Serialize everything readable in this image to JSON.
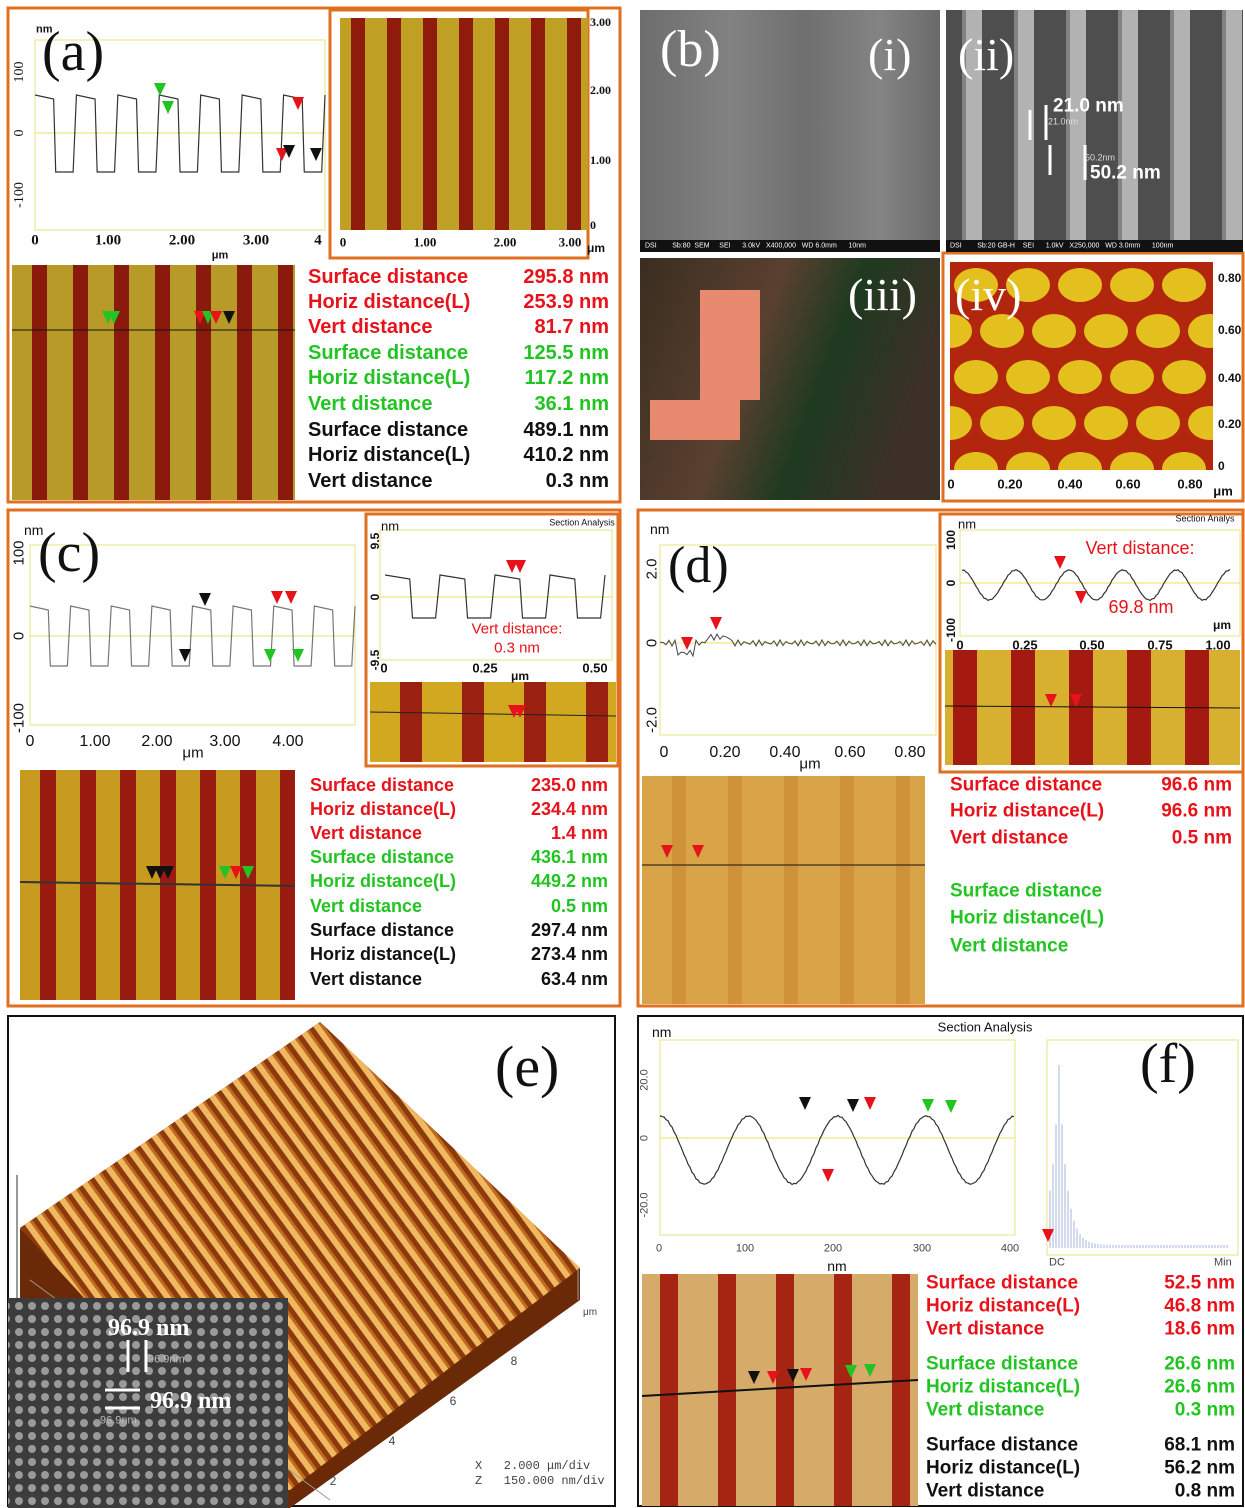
{
  "panels": {
    "a": {
      "label": "(a)",
      "profile": {
        "y_unit": "nm",
        "x_unit": "μm",
        "yticks": [
          "100",
          "0",
          "-100"
        ],
        "xticks": [
          "0",
          "1.00",
          "2.00",
          "3.00",
          "4"
        ]
      },
      "image": {
        "yticks": [
          "3.00",
          "2.00",
          "1.00",
          "0"
        ],
        "xticks": [
          "0",
          "1.00",
          "2.00",
          "3.00"
        ],
        "unit": "μm"
      },
      "measurements": [
        {
          "label": "Surface distance",
          "value": "295.8 nm",
          "color": "#e8121a"
        },
        {
          "label": "Horiz distance(L)",
          "value": "253.9 nm",
          "color": "#e8121a"
        },
        {
          "label": "Vert distance",
          "value": "81.7 nm",
          "color": "#e8121a"
        },
        {
          "label": "Surface distance",
          "value": "125.5 nm",
          "color": "#22c422"
        },
        {
          "label": "Horiz distance(L)",
          "value": "117.2 nm",
          "color": "#22c422"
        },
        {
          "label": "Vert distance",
          "value": "36.1 nm",
          "color": "#22c422"
        },
        {
          "label": "Surface distance",
          "value": "489.1 nm",
          "color": "#111111"
        },
        {
          "label": "Horiz distance(L)",
          "value": "410.2 nm",
          "color": "#111111"
        },
        {
          "label": "Vert distance",
          "value": "0.3 nm",
          "color": "#111111"
        }
      ]
    },
    "b": {
      "label": "(b)",
      "i": {
        "label": "(i)",
        "footer": "DSI        Sb:80  SEM     SEI      3.0kV   X400,000   WD 6.0mm      10nm"
      },
      "ii": {
        "label": "(ii)",
        "annotations": [
          "21.0 nm",
          "50.2 nm"
        ],
        "scale_annotations": [
          "21.0nm",
          "50.2nm"
        ],
        "footer": "DSI        Sb:20 GB-H    SEI      1.0kV   X250,000   WD 3.0mm      100nm"
      },
      "iii": {
        "label": "(iii)"
      },
      "iv": {
        "label": "(iv)",
        "yticks": [
          "0.80",
          "0.60",
          "0.40",
          "0.20",
          "0"
        ],
        "xticks": [
          "0",
          "0.20",
          "0.40",
          "0.60",
          "0.80"
        ],
        "unit": "μm"
      }
    },
    "c": {
      "label": "(c)",
      "profile": {
        "y_unit": "nm",
        "x_unit": "μm",
        "yticks": [
          "100",
          "0",
          "-100"
        ],
        "xticks": [
          "0",
          "1.00",
          "2.00",
          "3.00",
          "4.00"
        ]
      },
      "inset": {
        "title": "Section Analysis",
        "y_unit": "nm",
        "x_unit": "μm",
        "yticks": [
          "9.5",
          "0",
          "-9.5"
        ],
        "xticks": [
          "0",
          "0.25",
          "0.50"
        ],
        "annotation": [
          "Vert distance:",
          "0.3 nm"
        ]
      },
      "measurements": [
        {
          "label": "Surface distance",
          "value": "235.0 nm",
          "color": "#e8121a"
        },
        {
          "label": "Horiz distance(L)",
          "value": "234.4 nm",
          "color": "#e8121a"
        },
        {
          "label": "Vert distance",
          "value": "1.4 nm",
          "color": "#e8121a"
        },
        {
          "label": "Surface distance",
          "value": "436.1 nm",
          "color": "#22c422"
        },
        {
          "label": "Horiz distance(L)",
          "value": "449.2 nm",
          "color": "#22c422"
        },
        {
          "label": "Vert distance",
          "value": "0.5 nm",
          "color": "#22c422"
        },
        {
          "label": "Surface distance",
          "value": "297.4 nm",
          "color": "#111111"
        },
        {
          "label": "Horiz distance(L)",
          "value": "273.4 nm",
          "color": "#111111"
        },
        {
          "label": "Vert distance",
          "value": "63.4 nm",
          "color": "#111111"
        }
      ]
    },
    "d": {
      "label": "(d)",
      "profile": {
        "y_unit": "nm",
        "x_unit": "μm",
        "yticks": [
          "2.0",
          "0",
          "-2.0"
        ],
        "xticks": [
          "0",
          "0.20",
          "0.40",
          "0.60",
          "0.80"
        ]
      },
      "inset": {
        "title": "Section Analys",
        "y_unit": "nm",
        "x_unit": "μm",
        "yticks": [
          "100",
          "0",
          "-100"
        ],
        "xticks": [
          "0",
          "0.25",
          "0.50",
          "0.75",
          "1.00"
        ],
        "annotation": [
          "Vert distance:",
          "69.8 nm"
        ]
      },
      "measurements": [
        {
          "label": "Surface distance",
          "value": "96.6 nm",
          "color": "#e8121a"
        },
        {
          "label": "Horiz distance(L)",
          "value": "96.6 nm",
          "color": "#e8121a"
        },
        {
          "label": "Vert distance",
          "value": "0.5 nm",
          "color": "#e8121a"
        },
        {
          "label": "Surface distance",
          "color": "#22c422"
        },
        {
          "label": "Horiz distance(L)",
          "color": "#22c422"
        },
        {
          "label": "Vert distance",
          "color": "#22c422"
        }
      ]
    },
    "e": {
      "label": "(e)",
      "inset_annotations": [
        "96.9 nm",
        "96.9 nm"
      ],
      "inset_scale_annotations": [
        "96.9nm",
        "96.9nm"
      ],
      "axis_ticks": [
        "8",
        "6",
        "4",
        "2"
      ],
      "axis_unit": "μm",
      "scale": [
        "X   2.000 μm/div",
        "Z   150.000 nm/div"
      ]
    },
    "f": {
      "label": "(f)",
      "profile": {
        "title": "Section Analysis",
        "y_unit": "nm",
        "x_unit": "nm",
        "yticks": [
          "20.0",
          "0",
          "-20.0"
        ],
        "xticks": [
          "0",
          "100",
          "200",
          "300",
          "400"
        ]
      },
      "histogram": {
        "labels": [
          "DC",
          "Min"
        ]
      },
      "measurements": [
        {
          "label": "Surface distance",
          "value": "52.5 nm",
          "color": "#e8121a"
        },
        {
          "label": "Horiz distance(L)",
          "value": "46.8 nm",
          "color": "#e8121a"
        },
        {
          "label": "Vert distance",
          "value": "18.6 nm",
          "color": "#e8121a"
        },
        {
          "label": "Surface distance",
          "value": "26.6 nm",
          "color": "#22c422"
        },
        {
          "label": "Horiz distance(L)",
          "value": "26.6 nm",
          "color": "#22c422"
        },
        {
          "label": "Vert distance",
          "value": "0.3 nm",
          "color": "#22c422"
        },
        {
          "label": "Surface distance",
          "value": "68.1 nm",
          "color": "#111111"
        },
        {
          "label": "Horiz distance(L)",
          "value": "56.2 nm",
          "color": "#111111"
        },
        {
          "label": "Vert distance",
          "value": "0.8 nm",
          "color": "#111111"
        }
      ]
    }
  }
}
